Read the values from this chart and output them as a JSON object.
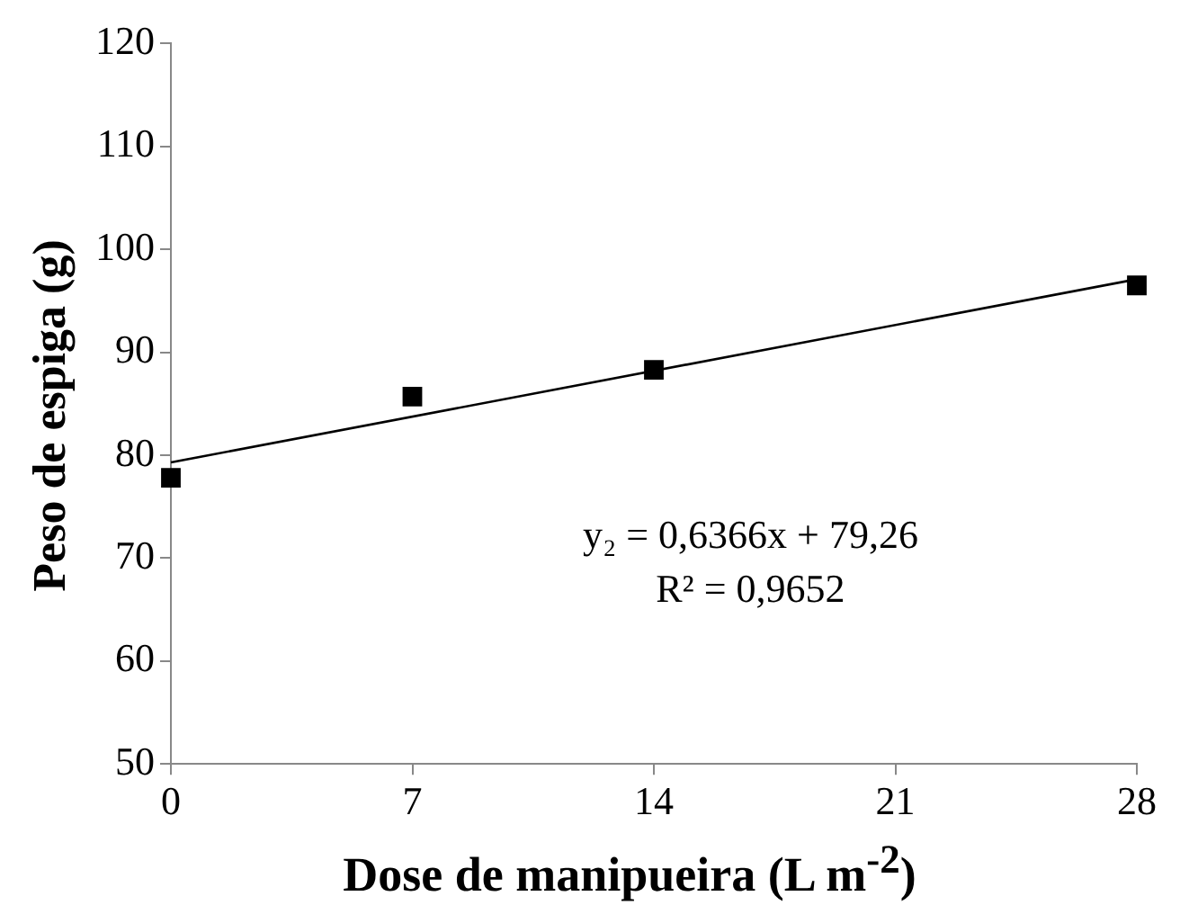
{
  "chart_data": {
    "type": "scatter",
    "xlabel": "Dose de manipueira (L m$^{-2}$)",
    "ylabel": "Peso de espiga (g)",
    "xlim": [
      0,
      28
    ],
    "xticks": [
      0,
      7,
      14,
      21,
      28
    ],
    "ylim": [
      50,
      120
    ],
    "yticks": [
      50,
      60,
      70,
      80,
      90,
      100,
      110,
      120
    ],
    "grid": false,
    "legend": false,
    "series": [
      {
        "type": "scatter",
        "color": "#000000",
        "marker": "square",
        "x": [
          0,
          7,
          14,
          28
        ],
        "values": [
          77.8,
          85.7,
          88.3,
          96.5
        ]
      },
      {
        "type": "line",
        "color": "#000000",
        "marker": "none",
        "line_style": "solid",
        "x": [
          0,
          28
        ],
        "values": [
          79.3,
          97.1
        ]
      }
    ],
    "annotations": [
      "y₂ = 0,6366x + 79,26",
      "R² = 0,9652"
    ]
  }
}
